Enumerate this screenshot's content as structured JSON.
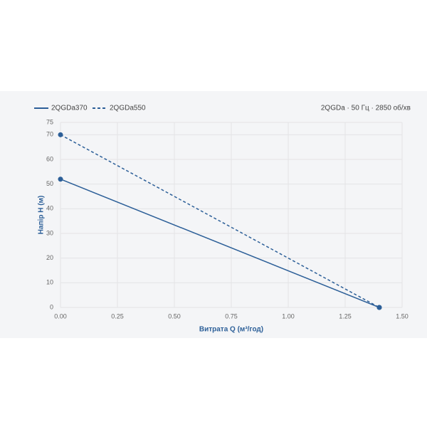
{
  "chart_data": {
    "type": "line",
    "subtitle": "2QGDa · 50 Гц · 2850 об/хв",
    "x_label": "Витрата Q (м³/год)",
    "y_label": "Напір H (м)",
    "x": [
      0,
      1.4
    ],
    "series": [
      {
        "name": "2QGDa370",
        "color": "#2c5f98",
        "style": "solid",
        "values": [
          52,
          0
        ]
      },
      {
        "name": "2QGDa550",
        "color": "#2c5f98",
        "style": "dashed",
        "values": [
          70,
          0
        ]
      }
    ],
    "xlim": [
      0,
      1.5
    ],
    "xticks": [
      {
        "value": 0,
        "label": "0.00"
      },
      0.25,
      {
        "value": 0.5,
        "label": "0.50"
      },
      0.75,
      {
        "value": 1,
        "label": "1.00"
      },
      1.25,
      {
        "value": 1.5,
        "label": "1.50"
      }
    ],
    "ylim": [
      0,
      75
    ],
    "yticks": [
      0,
      10,
      20,
      30,
      40,
      50,
      60,
      70,
      75
    ],
    "grid": true
  }
}
